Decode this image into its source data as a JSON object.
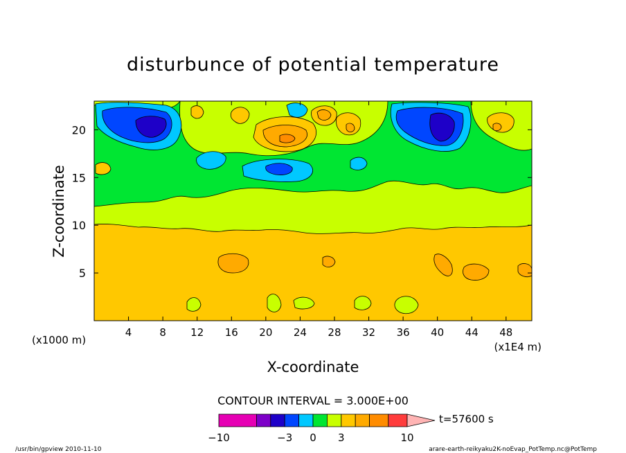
{
  "chart_data": {
    "type": "heatmap",
    "title": "disturbunce of potential temperature",
    "xlabel": "X-coordinate",
    "ylabel": "Z-coordinate",
    "x_unit_left": "(x1000 m)",
    "x_unit_right": "(x1E4 m)",
    "xlim": [
      0,
      51
    ],
    "ylim": [
      0,
      23
    ],
    "x_ticks": [
      "4",
      "8",
      "12",
      "16",
      "20",
      "24",
      "28",
      "32",
      "36",
      "40",
      "44",
      "48"
    ],
    "y_ticks": [
      "5",
      "10",
      "15",
      "20"
    ],
    "contour_interval_text": "CONTOUR INTERVAL = 3.000E+00",
    "time_label": "t=57600 s",
    "colorbar": {
      "tick_labels": [
        "−10",
        "−3",
        "0",
        "3",
        "10"
      ],
      "colors": [
        "#e600b4",
        "#7d00c8",
        "#1e00c8",
        "#0046ff",
        "#00c8ff",
        "#00e632",
        "#c8ff00",
        "#ffc800",
        "#ffaa00",
        "#ff8c00",
        "#ff3c3c",
        "#ff7878",
        "#ffb4b4"
      ],
      "levels": [
        -10,
        -6,
        -4.5,
        -3,
        -1.5,
        0,
        1.5,
        3,
        4.5,
        6,
        8,
        10
      ]
    }
  },
  "footer": {
    "left": "/usr/bin/gpview   2010-11-10",
    "right": "arare-earth-reikyaku2K-noEvap_PotTemp.nc@PotTemp"
  }
}
